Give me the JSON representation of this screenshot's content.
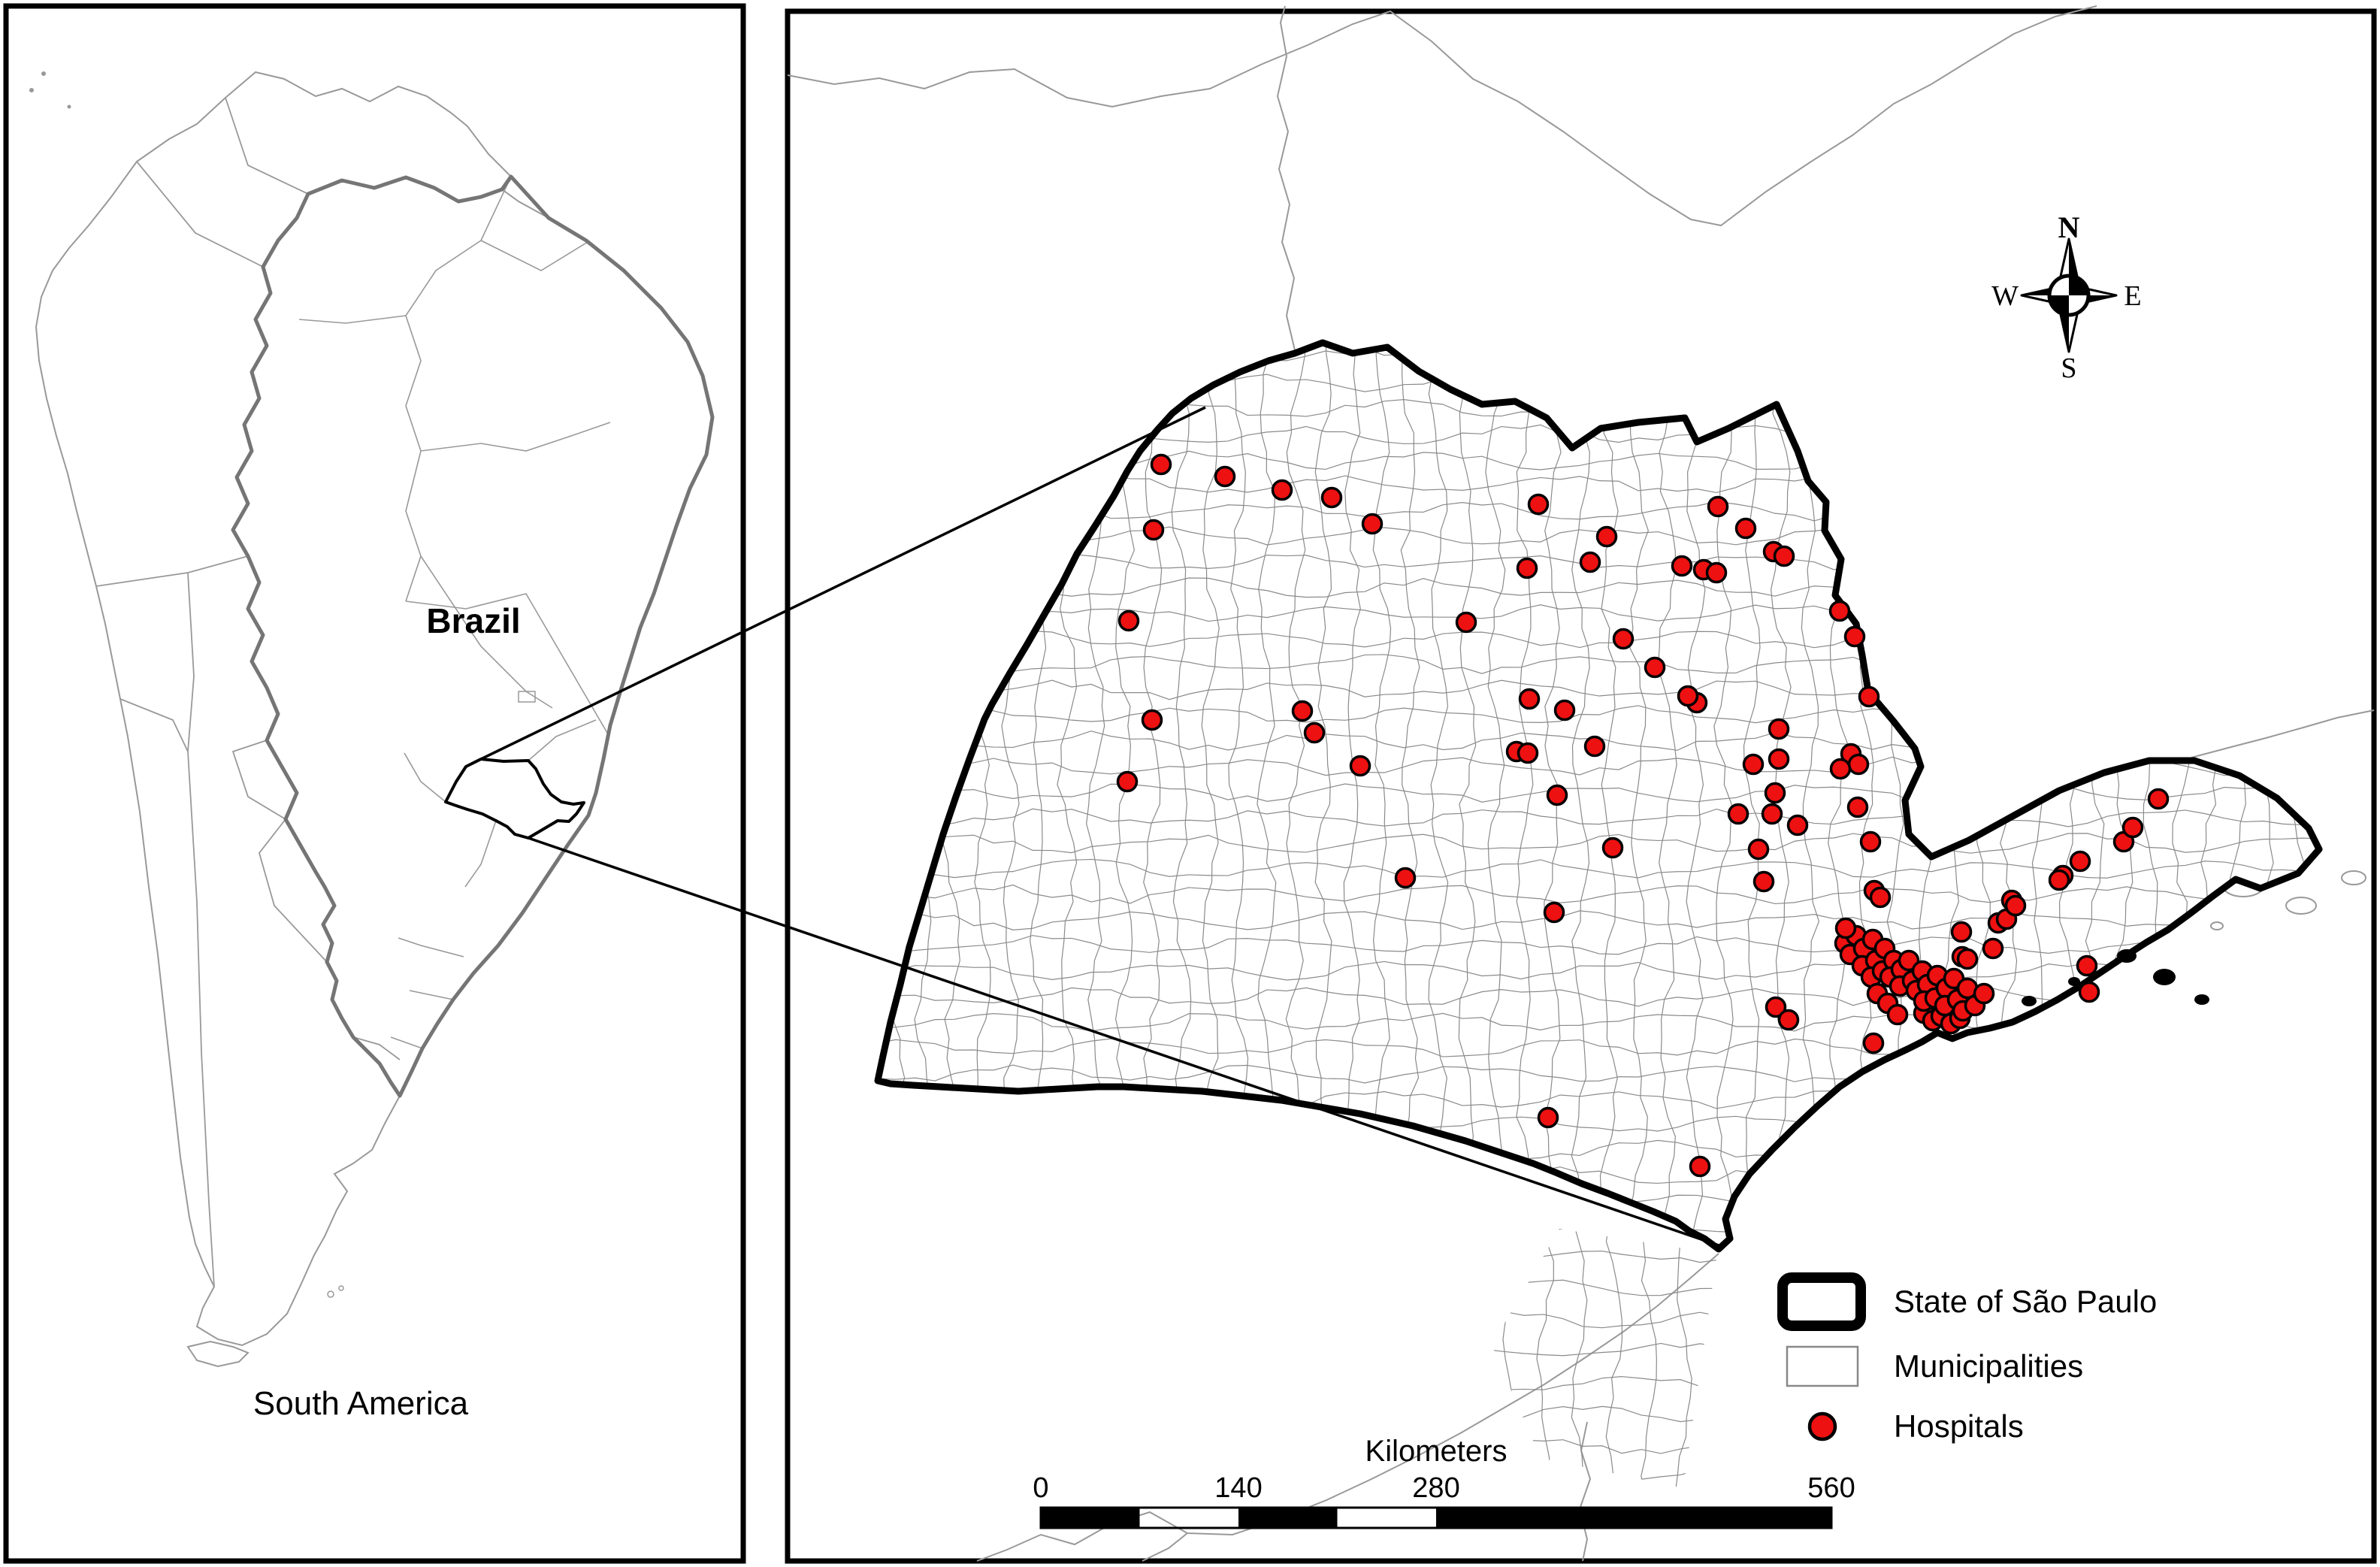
{
  "figure": {
    "type": "study-area-map",
    "description": "Location of hospitals in the State of São Paulo, Brazil"
  },
  "left_panel": {
    "label_brazil": "Brazil",
    "label_region": "South America"
  },
  "right_panel": {
    "compass": {
      "n": "N",
      "e": "E",
      "s": "S",
      "w": "W"
    },
    "legend": {
      "items": [
        {
          "label": "State of São Paulo",
          "swatch": "thick-black-outline"
        },
        {
          "label": "Municipalities",
          "swatch": "thin-gray-outline"
        },
        {
          "label": "Hospitals",
          "swatch": "red-dot"
        }
      ]
    },
    "scalebar": {
      "title": "Kilometers",
      "ticks": [
        "0",
        "140",
        "280",
        "560"
      ],
      "tick_values": [
        0,
        140,
        280,
        560
      ],
      "max_km": 560,
      "black_segments_km": [
        [
          0,
          70
        ],
        [
          140,
          210
        ],
        [
          280,
          560
        ]
      ]
    },
    "hospitals": {
      "count": 116,
      "points": [
        [
          1545,
          618
        ],
        [
          1630,
          634
        ],
        [
          1706,
          652
        ],
        [
          1772,
          662
        ],
        [
          1826,
          697
        ],
        [
          1535,
          705
        ],
        [
          1502,
          826
        ],
        [
          1533,
          958
        ],
        [
          1500,
          1040
        ],
        [
          2047,
          671
        ],
        [
          2138,
          714
        ],
        [
          2116,
          748
        ],
        [
          2032,
          756
        ],
        [
          1951,
          828
        ],
        [
          2035,
          930
        ],
        [
          1733,
          946
        ],
        [
          1749,
          975
        ],
        [
          1810,
          1019
        ],
        [
          2238,
          753
        ],
        [
          2267,
          758
        ],
        [
          2284,
          762
        ],
        [
          2360,
          734
        ],
        [
          2374,
          740
        ],
        [
          2286,
          674
        ],
        [
          2323,
          703
        ],
        [
          2448,
          813
        ],
        [
          2468,
          847
        ],
        [
          2487,
          927
        ],
        [
          2160,
          850
        ],
        [
          2202,
          888
        ],
        [
          2258,
          935
        ],
        [
          2246,
          926
        ],
        [
          2082,
          945
        ],
        [
          2122,
          993
        ],
        [
          2018,
          1000
        ],
        [
          2033,
          1002
        ],
        [
          2072,
          1058
        ],
        [
          2146,
          1128
        ],
        [
          2333,
          1017
        ],
        [
          2367,
          970
        ],
        [
          2367,
          1010
        ],
        [
          2362,
          1055
        ],
        [
          2313,
          1083
        ],
        [
          2358,
          1083
        ],
        [
          2392,
          1098
        ],
        [
          2340,
          1130
        ],
        [
          2463,
          1003
        ],
        [
          2473,
          1017
        ],
        [
          2449,
          1023
        ],
        [
          2472,
          1074
        ],
        [
          2489,
          1120
        ],
        [
          2494,
          1185
        ],
        [
          2502,
          1194
        ],
        [
          2347,
          1173
        ],
        [
          2363,
          1340
        ],
        [
          2380,
          1357
        ],
        [
          2068,
          1214
        ],
        [
          1870,
          1168
        ],
        [
          2060,
          1487
        ],
        [
          2262,
          1552
        ],
        [
          2659,
          1228
        ],
        [
          2670,
          1223
        ],
        [
          2677,
          1198
        ],
        [
          2682,
          1205
        ],
        [
          2611,
          1273
        ],
        [
          2618,
          1276
        ],
        [
          2745,
          1165
        ],
        [
          2740,
          1171
        ],
        [
          2768,
          1146
        ],
        [
          2826,
          1120
        ],
        [
          2838,
          1101
        ],
        [
          2872,
          1063
        ],
        [
          2777,
          1285
        ],
        [
          2780,
          1320
        ],
        [
          2560,
          1348
        ],
        [
          2572,
          1358
        ],
        [
          2583,
          1352
        ],
        [
          2596,
          1362
        ],
        [
          2608,
          1355
        ],
        [
          2493,
          1388
        ],
        [
          2455,
          1255
        ],
        [
          2470,
          1245
        ],
        [
          2462,
          1270
        ],
        [
          2480,
          1262
        ],
        [
          2492,
          1250
        ],
        [
          2478,
          1285
        ],
        [
          2496,
          1278
        ],
        [
          2508,
          1262
        ],
        [
          2490,
          1300
        ],
        [
          2505,
          1292
        ],
        [
          2520,
          1278
        ],
        [
          2515,
          1300
        ],
        [
          2530,
          1290
        ],
        [
          2540,
          1278
        ],
        [
          2528,
          1312
        ],
        [
          2545,
          1305
        ],
        [
          2558,
          1292
        ],
        [
          2550,
          1318
        ],
        [
          2565,
          1310
        ],
        [
          2578,
          1298
        ],
        [
          2560,
          1332
        ],
        [
          2575,
          1328
        ],
        [
          2590,
          1315
        ],
        [
          2600,
          1302
        ],
        [
          2588,
          1338
        ],
        [
          2605,
          1330
        ],
        [
          2618,
          1315
        ],
        [
          2612,
          1345
        ],
        [
          2628,
          1338
        ],
        [
          2640,
          1322
        ],
        [
          2498,
          1322
        ],
        [
          2512,
          1335
        ],
        [
          2525,
          1350
        ],
        [
          2456,
          1235
        ],
        [
          2610,
          1240
        ],
        [
          2652,
          1262
        ]
      ]
    }
  },
  "colors": {
    "hospital_fill": "#ee1111",
    "state_border": "#000000",
    "municipality_line": "#8a8a8a",
    "brazil_border": "#757575",
    "thin_map_line": "#999999",
    "panel_border": "#000000"
  }
}
